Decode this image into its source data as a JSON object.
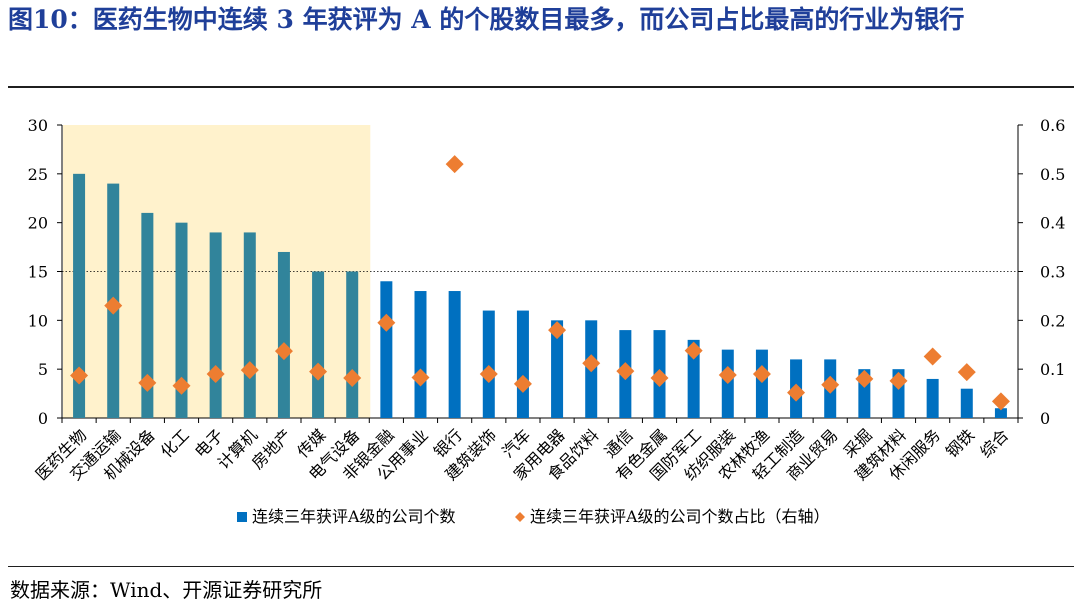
{
  "title": "图10：医药生物中连续 3 年获评为 A 的个股数目最多，而公司占比最高的行业为银行",
  "source": "数据来源：Wind、开源证券研究所",
  "colors": {
    "title": "#1f3f99",
    "bar_highlight": "#31849b",
    "bar": "#0070c0",
    "marker": "#ed7d31",
    "highlight_bg": "#fff2cc"
  },
  "chart_data": {
    "type": "bar",
    "categories": [
      "医药生物",
      "交通运输",
      "机械设备",
      "化工",
      "电子",
      "计算机",
      "房地产",
      "传媒",
      "电气设备",
      "非银金融",
      "公用事业",
      "银行",
      "建筑装饰",
      "汽车",
      "家用电器",
      "食品饮料",
      "通信",
      "有色金属",
      "国防军工",
      "纺织服装",
      "农林牧渔",
      "轻工制造",
      "商业贸易",
      "采掘",
      "建筑材料",
      "休闲服务",
      "钢铁",
      "综合"
    ],
    "series": [
      {
        "name": "连续三年获评A级的公司个数",
        "axis": "left",
        "kind": "bar",
        "values": [
          25,
          24,
          21,
          20,
          19,
          19,
          17,
          15,
          15,
          14,
          13,
          13,
          11,
          11,
          10,
          10,
          9,
          9,
          8,
          7,
          7,
          6,
          6,
          5,
          5,
          4,
          3,
          1
        ]
      },
      {
        "name": "连续三年获评A级的公司个数占比（右轴）",
        "axis": "right",
        "kind": "marker",
        "values": [
          0.087,
          0.23,
          0.072,
          0.066,
          0.09,
          0.098,
          0.137,
          0.095,
          0.082,
          0.195,
          0.083,
          0.52,
          0.09,
          0.07,
          0.18,
          0.112,
          0.096,
          0.082,
          0.138,
          0.088,
          0.09,
          0.052,
          0.068,
          0.08,
          0.076,
          0.126,
          0.094,
          0.034
        ]
      }
    ],
    "highlighted_count": 9,
    "ylim_left": [
      0,
      30
    ],
    "yticks_left": [
      "0",
      "5",
      "10",
      "15",
      "20",
      "25",
      "30"
    ],
    "ylim_right": [
      0,
      0.6
    ],
    "yticks_right": [
      "0",
      "0.1",
      "0.2",
      "0.3",
      "0.4",
      "0.5",
      "0.6"
    ],
    "reference_line_left": 15,
    "legend_position": "bottom"
  }
}
